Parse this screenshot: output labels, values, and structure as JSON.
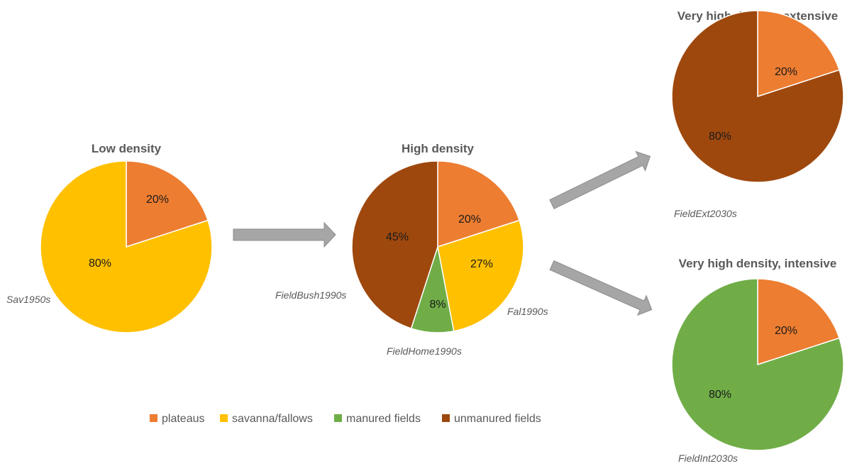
{
  "colors": {
    "plateaus": "#ED7D31",
    "savanna_fallows": "#FFC000",
    "manured_fields": "#70AD47",
    "unmanured_fields": "#9E480E",
    "arrow": "#A6A6A6"
  },
  "chart_data": [
    {
      "type": "pie",
      "title": "Low density",
      "slices": [
        {
          "category": "plateaus",
          "value": 20,
          "label": "20%"
        },
        {
          "category": "savanna/fallows",
          "value": 80,
          "label": "80%"
        }
      ],
      "annotations": [
        "Sav1950s"
      ]
    },
    {
      "type": "pie",
      "title": "High density",
      "slices": [
        {
          "category": "plateaus",
          "value": 20,
          "label": "20%"
        },
        {
          "category": "savanna/fallows",
          "value": 27,
          "label": "27%"
        },
        {
          "category": "manured fields",
          "value": 8,
          "label": "8%"
        },
        {
          "category": "unmanured fields",
          "value": 45,
          "label": "45%"
        }
      ],
      "annotations": [
        "FieldBush1990s",
        "Fal1990s",
        "FieldHome1990s"
      ]
    },
    {
      "type": "pie",
      "title": "Very high density, extensive",
      "slices": [
        {
          "category": "plateaus",
          "value": 20,
          "label": "20%"
        },
        {
          "category": "unmanured fields",
          "value": 80,
          "label": "80%"
        }
      ],
      "annotations": [
        "FieldExt2030s"
      ]
    },
    {
      "type": "pie",
      "title": "Very high density, intensive",
      "slices": [
        {
          "category": "plateaus",
          "value": 20,
          "label": "20%"
        },
        {
          "category": "manured fields",
          "value": 80,
          "label": "80%"
        }
      ],
      "annotations": [
        "FieldInt2030s"
      ]
    }
  ],
  "legend": [
    {
      "label": "plateaus",
      "color": "#ED7D31"
    },
    {
      "label": "savanna/fallows",
      "color": "#FFC000"
    },
    {
      "label": "manured fields",
      "color": "#70AD47"
    },
    {
      "label": "unmanured fields",
      "color": "#9E480E"
    }
  ]
}
